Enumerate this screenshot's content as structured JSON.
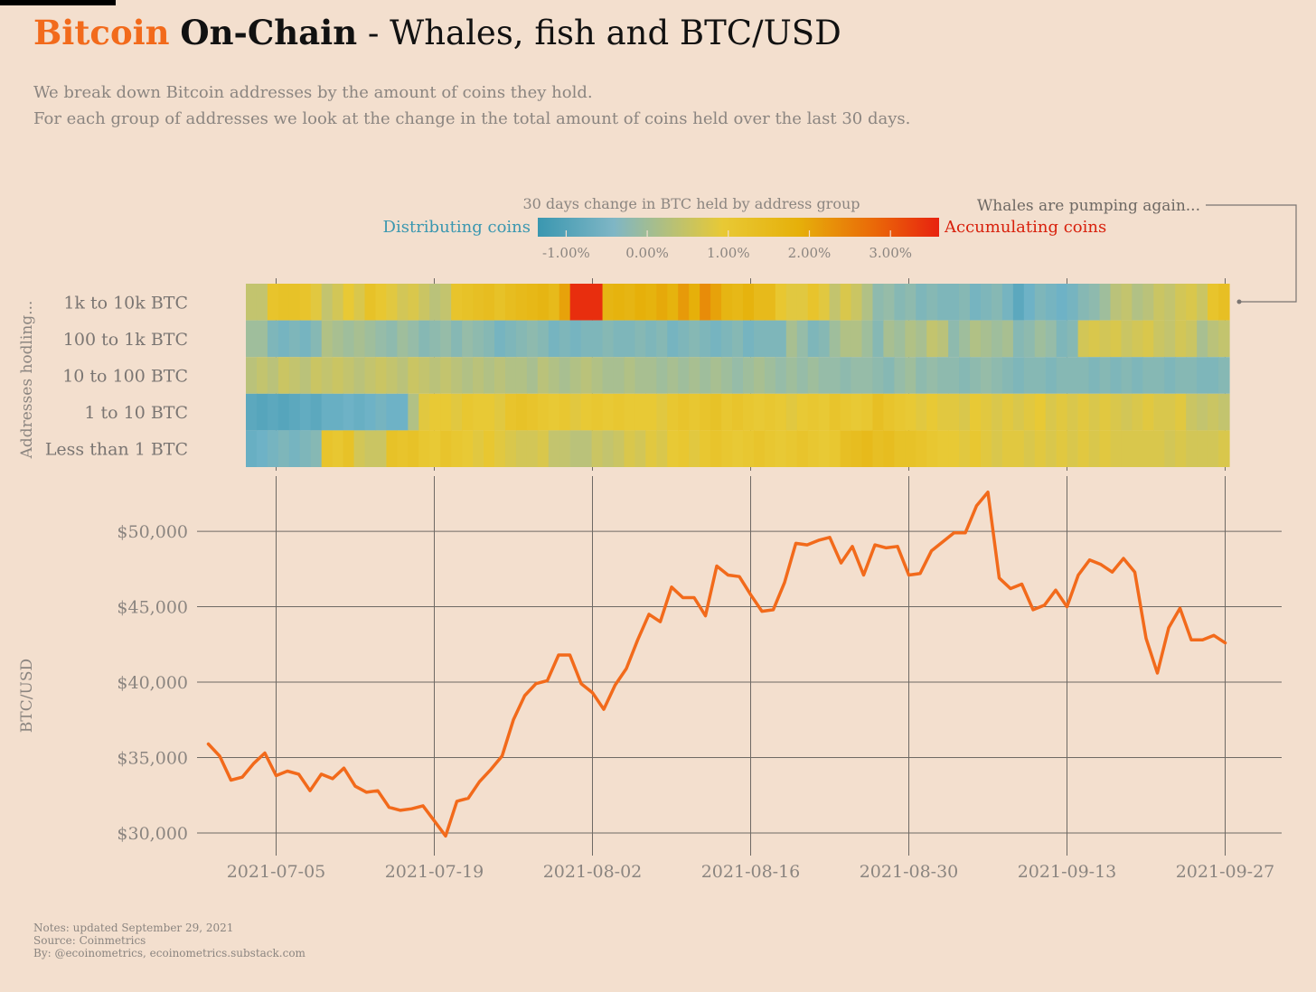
{
  "header": {
    "title_brand": "Bitcoin",
    "title_bold": "On-Chain",
    "title_rest": "- Whales, fish and BTC/USD",
    "subtitle_line1": "We break down Bitcoin addresses by the amount of coins they hold.",
    "subtitle_line2": "For each group of addresses we look at the change in the total amount of coins held over the last 30 days."
  },
  "footer": {
    "notes": "Notes: updated September 29, 2021",
    "source": "Source: Coinmetrics",
    "by": "By: @ecoinometrics, ecoinometrics.substack.com"
  },
  "colors": {
    "background": "#f3dfce",
    "brand": "#f26a1b",
    "line": "#f26a1b",
    "distributing": "#3a97b0",
    "accumulating": "#e8250e",
    "text_muted": "#8b8580"
  },
  "chart_data": [
    {
      "type": "heatmap",
      "title": "30 days change in BTC held by address group",
      "ylabel": "Addresses hodling...",
      "legend": {
        "low_label": "Distributing coins",
        "high_label": "Accumulating coins",
        "ticks": [
          "-1.00%",
          "0.00%",
          "1.00%",
          "2.00%",
          "3.00%"
        ],
        "range": [
          -1.35,
          3.6
        ]
      },
      "annotation": "Whales are pumping again...",
      "x_start": "2021-06-29",
      "x_end": "2021-09-28",
      "rows": [
        {
          "name": "1k to 10k BTC",
          "values": [
            0.5,
            0.5,
            1.2,
            1.3,
            1.3,
            1.2,
            0.9,
            0.5,
            0.7,
            1.0,
            0.8,
            1.3,
            1.1,
            0.9,
            0.7,
            0.8,
            0.6,
            0.4,
            0.5,
            1.2,
            1.3,
            1.4,
            1.5,
            1.3,
            1.5,
            1.6,
            1.7,
            1.8,
            1.6,
            2.2,
            3.5,
            3.5,
            3.5,
            1.8,
            1.9,
            1.8,
            2.0,
            1.9,
            2.1,
            1.9,
            2.3,
            2.0,
            2.5,
            2.2,
            1.8,
            1.7,
            1.9,
            1.6,
            1.6,
            1.1,
            0.9,
            0.9,
            1.2,
            0.9,
            0.5,
            0.8,
            0.6,
            0.3,
            -0.1,
            0.0,
            -0.2,
            -0.1,
            -0.3,
            -0.2,
            -0.3,
            -0.3,
            -0.2,
            -0.4,
            -0.3,
            -0.2,
            -0.4,
            -0.8,
            -0.5,
            -0.3,
            -0.4,
            -0.5,
            -0.4,
            -0.2,
            -0.1,
            0.1,
            0.4,
            0.5,
            0.3,
            0.4,
            0.6,
            0.5,
            0.7,
            0.8,
            0.6,
            1.2,
            1.4
          ]
        },
        {
          "name": "100 to 1k BTC",
          "values": [
            0.1,
            0.1,
            -0.3,
            -0.4,
            -0.3,
            -0.4,
            -0.2,
            0.3,
            0.2,
            0.1,
            0.2,
            0.1,
            0.0,
            -0.1,
            0.1,
            0.0,
            -0.2,
            -0.1,
            0.0,
            -0.2,
            0.0,
            -0.1,
            -0.2,
            -0.4,
            -0.3,
            -0.2,
            -0.1,
            -0.2,
            -0.4,
            -0.3,
            -0.4,
            -0.3,
            -0.3,
            -0.2,
            -0.3,
            -0.3,
            -0.2,
            -0.3,
            -0.2,
            -0.4,
            -0.3,
            -0.2,
            -0.3,
            -0.4,
            -0.3,
            -0.2,
            -0.4,
            -0.3,
            -0.3,
            -0.3,
            0.2,
            0.0,
            -0.3,
            -0.2,
            0.1,
            0.3,
            0.3,
            0.1,
            -0.2,
            0.2,
            0.1,
            0.3,
            0.2,
            0.5,
            0.4,
            -0.1,
            0.1,
            0.3,
            0.2,
            0.1,
            0.2,
            -0.2,
            -0.1,
            0.1,
            0.0,
            -0.3,
            -0.2,
            0.7,
            0.8,
            0.7,
            0.8,
            0.6,
            0.7,
            0.8,
            0.6,
            0.5,
            0.7,
            0.6,
            0.2,
            0.4,
            0.5
          ]
        },
        {
          "name": "10 to 100 BTC",
          "values": [
            0.4,
            0.5,
            0.4,
            0.6,
            0.5,
            0.4,
            0.6,
            0.5,
            0.6,
            0.5,
            0.4,
            0.5,
            0.6,
            0.5,
            0.4,
            0.6,
            0.5,
            0.4,
            0.5,
            0.4,
            0.3,
            0.4,
            0.3,
            0.4,
            0.3,
            0.3,
            0.2,
            0.4,
            0.3,
            0.2,
            0.3,
            0.4,
            0.3,
            0.2,
            0.2,
            0.3,
            0.2,
            0.2,
            0.1,
            0.2,
            0.1,
            0.2,
            0.1,
            0.2,
            0.1,
            0.0,
            0.1,
            0.2,
            0.1,
            0.0,
            0.1,
            0.0,
            0.1,
            0.0,
            0.0,
            -0.1,
            0.0,
            0.0,
            -0.1,
            -0.2,
            0.0,
            0.1,
            -0.1,
            0.0,
            -0.1,
            -0.1,
            -0.2,
            -0.1,
            0.0,
            -0.1,
            -0.2,
            -0.3,
            -0.2,
            -0.2,
            -0.3,
            -0.2,
            -0.2,
            -0.2,
            -0.3,
            -0.2,
            -0.3,
            -0.2,
            -0.3,
            -0.2,
            -0.2,
            -0.3,
            -0.2,
            -0.2,
            -0.3,
            -0.3,
            -0.2
          ]
        },
        {
          "name": "1 to 10 BTC",
          "values": [
            -0.8,
            -0.9,
            -0.8,
            -0.9,
            -0.8,
            -0.7,
            -0.8,
            -0.6,
            -0.6,
            -0.5,
            -0.6,
            -0.5,
            -0.4,
            -0.5,
            -0.5,
            0.3,
            0.9,
            1.0,
            1.0,
            0.9,
            1.1,
            1.0,
            1.0,
            0.9,
            1.2,
            1.3,
            1.2,
            1.1,
            1.0,
            1.1,
            0.9,
            1.0,
            1.1,
            1.0,
            1.1,
            1.0,
            1.0,
            1.0,
            0.9,
            1.1,
            1.2,
            1.1,
            1.2,
            1.3,
            1.1,
            1.2,
            1.1,
            1.0,
            1.1,
            1.0,
            0.9,
            1.0,
            1.1,
            1.0,
            1.2,
            1.1,
            1.0,
            1.1,
            1.4,
            1.2,
            1.1,
            1.0,
            0.9,
            1.0,
            0.9,
            0.9,
            0.8,
            1.0,
            0.9,
            0.8,
            0.9,
            0.8,
            0.9,
            1.0,
            0.8,
            0.9,
            0.8,
            0.9,
            0.8,
            0.9,
            0.8,
            0.7,
            0.8,
            0.9,
            0.8,
            0.8,
            0.9,
            0.6,
            0.5,
            0.6,
            0.5
          ]
        },
        {
          "name": "Less than 1 BTC",
          "values": [
            -0.6,
            -0.5,
            -0.4,
            -0.3,
            -0.4,
            -0.3,
            -0.2,
            1.2,
            1.1,
            1.3,
            0.7,
            0.6,
            0.6,
            1.3,
            1.2,
            1.3,
            1.1,
            1.0,
            1.2,
            1.1,
            1.0,
            0.9,
            1.1,
            0.9,
            0.8,
            0.7,
            0.7,
            0.8,
            0.5,
            0.5,
            0.4,
            0.4,
            0.6,
            0.5,
            0.6,
            0.8,
            0.7,
            0.9,
            0.8,
            1.0,
            1.1,
            0.9,
            1.1,
            1.2,
            1.1,
            1.0,
            1.1,
            1.2,
            1.1,
            1.0,
            1.1,
            1.2,
            1.1,
            1.0,
            1.1,
            1.4,
            1.5,
            1.6,
            1.4,
            1.5,
            1.3,
            1.3,
            1.2,
            1.1,
            1.0,
            1.0,
            0.9,
            1.1,
            0.9,
            0.8,
            0.9,
            0.9,
            0.8,
            0.9,
            0.8,
            0.9,
            0.8,
            0.9,
            0.8,
            0.9,
            0.8,
            0.8,
            0.8,
            0.8,
            0.8,
            0.7,
            0.8,
            0.7,
            0.7,
            0.7,
            0.8
          ]
        }
      ]
    },
    {
      "type": "line",
      "ylabel": "BTC/USD",
      "xlabel": "",
      "x_ticks": [
        "2021-07-05",
        "2021-07-19",
        "2021-08-02",
        "2021-08-16",
        "2021-08-30",
        "2021-09-13",
        "2021-09-27"
      ],
      "y_ticks": [
        "$30,000",
        "$35,000",
        "$40,000",
        "$45,000",
        "$50,000"
      ],
      "y_tick_values": [
        30000,
        35000,
        40000,
        45000,
        50000
      ],
      "ylim": [
        28500,
        53000
      ],
      "xlim": [
        "2021-06-28",
        "2021-10-02"
      ],
      "x_start": "2021-06-29",
      "series": [
        {
          "values": [
            35900,
            35100,
            33500,
            33700,
            34600,
            35300,
            33800,
            34100,
            33900,
            32800,
            33900,
            33600,
            34300,
            33100,
            32700,
            32800,
            31700,
            31500,
            31600,
            31800,
            30800,
            29800,
            32100,
            32300,
            33400,
            34200,
            35100,
            37500,
            39100,
            39900,
            40100,
            41800,
            41800,
            39900,
            39300,
            38200,
            39800,
            40900,
            42800,
            44500,
            44000,
            46300,
            45600,
            45600,
            44400,
            47700,
            47100,
            47000,
            45800,
            44700,
            44800,
            46600,
            49200,
            49100,
            49400,
            49600,
            47900,
            49000,
            47100,
            49100,
            48900,
            49000,
            47100,
            47200,
            48700,
            49300,
            49900,
            49900,
            51700,
            52600,
            46900,
            46200,
            46500,
            44800,
            45100,
            46100,
            45000,
            47100,
            48100,
            47800,
            47300,
            48200,
            47300,
            42900,
            40600,
            43600,
            44900,
            42800,
            42800,
            43100,
            42600
          ]
        }
      ]
    }
  ]
}
